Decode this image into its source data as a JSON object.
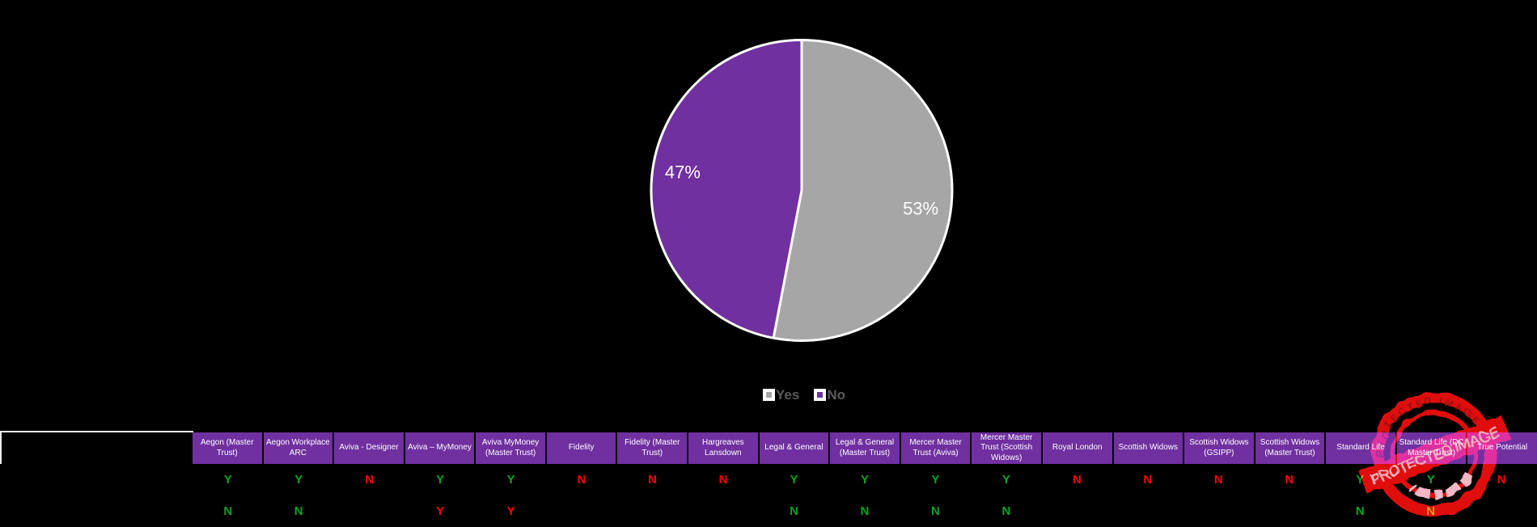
{
  "background": "#000000",
  "chart_data": {
    "type": "pie",
    "title": "",
    "slices": [
      {
        "label": "Yes",
        "value": 53,
        "color": "#a6a6a6",
        "data_label": "53%"
      },
      {
        "label": "No",
        "value": 47,
        "color": "#7030a0",
        "data_label": "47%"
      }
    ],
    "start_angle_deg": 0,
    "direction": "clockwise",
    "slice_border_color": "#ffffff",
    "data_label_color": "#ffffff",
    "legend_position": "bottom",
    "legend_text_color": "#595959"
  },
  "legend": {
    "items": [
      {
        "label": "Yes",
        "color": "#a6a6a6"
      },
      {
        "label": "No",
        "color": "#7030a0"
      }
    ]
  },
  "table": {
    "header_bg": "#7030a0",
    "header_text_color": "#ffffff",
    "positive_color": "#0ca321",
    "negative_color": "#fe0000",
    "corner_label": "",
    "columns": [
      "Aegon (Master Trust)",
      "Aegon Workplace ARC",
      "Aviva - Designer",
      "Aviva – MyMoney",
      "Aviva MyMoney (Master Trust)",
      "Fidelity",
      "Fidelity (Master Trust)",
      "Hargreaves Lansdown",
      "Legal & General",
      "Legal & General (Master Trust)",
      "Mercer Master Trust (Aviva)",
      "Mercer Master Trust (Scottish Widows)",
      "Royal London",
      "Scottish Widows",
      "Scottish Widows (GSIPP)",
      "Scottish Widows (Master Trust)",
      "Standard Life",
      "Standard Life (DC Master Trust)",
      "True Potential"
    ],
    "rows": [
      {
        "label": "",
        "cells": [
          {
            "text": "Y",
            "tone": "positive"
          },
          {
            "text": "Y",
            "tone": "positive"
          },
          {
            "text": "N",
            "tone": "negative"
          },
          {
            "text": "Y",
            "tone": "positive"
          },
          {
            "text": "Y",
            "tone": "positive"
          },
          {
            "text": "N",
            "tone": "negative"
          },
          {
            "text": "N",
            "tone": "negative"
          },
          {
            "text": "N",
            "tone": "negative"
          },
          {
            "text": "Y",
            "tone": "positive"
          },
          {
            "text": "Y",
            "tone": "positive"
          },
          {
            "text": "Y",
            "tone": "positive"
          },
          {
            "text": "Y",
            "tone": "positive"
          },
          {
            "text": "N",
            "tone": "negative"
          },
          {
            "text": "N",
            "tone": "negative"
          },
          {
            "text": "N",
            "tone": "negative"
          },
          {
            "text": "N",
            "tone": "negative"
          },
          {
            "text": "Y",
            "tone": "positive"
          },
          {
            "text": "Y",
            "tone": "positive"
          },
          {
            "text": "N",
            "tone": "negative"
          }
        ]
      },
      {
        "label": "",
        "cells": [
          {
            "text": "N",
            "tone": "positive"
          },
          {
            "text": "N",
            "tone": "positive"
          },
          {
            "text": "",
            "tone": "none"
          },
          {
            "text": "Y",
            "tone": "negative"
          },
          {
            "text": "Y",
            "tone": "negative"
          },
          {
            "text": "",
            "tone": "none"
          },
          {
            "text": "",
            "tone": "none"
          },
          {
            "text": "",
            "tone": "none"
          },
          {
            "text": "N",
            "tone": "positive"
          },
          {
            "text": "N",
            "tone": "positive"
          },
          {
            "text": "N",
            "tone": "positive"
          },
          {
            "text": "N",
            "tone": "positive"
          },
          {
            "text": "",
            "tone": "none"
          },
          {
            "text": "",
            "tone": "none"
          },
          {
            "text": "",
            "tone": "none"
          },
          {
            "text": "",
            "tone": "none"
          },
          {
            "text": "N",
            "tone": "positive"
          },
          {
            "text": "N",
            "tone": "positive"
          },
          {
            "text": "",
            "tone": "none"
          }
        ]
      }
    ]
  },
  "watermark": {
    "banner_text": "PROTECTED IMAGE",
    "arc_text": "PROTECTED IMAGE",
    "stamp_color": "#e01111",
    "banner_text_color": "#f0b4bc"
  }
}
